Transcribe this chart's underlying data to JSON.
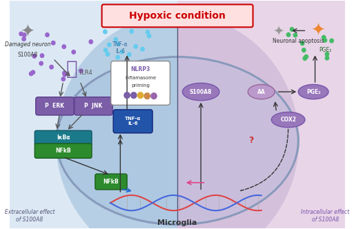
{
  "title": "Hypoxic condition",
  "title_color": "#cc0000",
  "title_box_color": "#ffcccc",
  "bg_color": "#ffffff",
  "left_bg": "#dce9f5",
  "right_bg": "#e8d5e8",
  "cell_left_bg": "#c5d8f0",
  "cell_right_bg": "#d9c5e0",
  "microglia_label": "Microglia",
  "extracellular_label": "Extracellular effect\nof S100A8",
  "intracellular_label": "Intracellular effect\nof S100A8",
  "neuronal_apoptosis_label": "Neuronal apoptosis",
  "damaged_neuron_label": "Damaged neuron",
  "s100a8_label": "S100A8",
  "tlr4_label": "TLR4",
  "erk_label": "P  ERK",
  "jnk_label": "P  JNK",
  "ikba_label": "IκBα",
  "nfkb_box_label": "NFkB",
  "nfkb_label": "NFkB",
  "tnf_il6_label": "TNF-α\nIL-6",
  "tnf_il6_box_label": "TNF-α\nIL-6",
  "nlrp3_label": "NLRP3\ninflamasome\npriming",
  "s100a8_right_label": "S100A8",
  "aa_label": "AA",
  "pge2_label": "PGE₂",
  "cox2_label": "COX2",
  "pge2_top_label": "PGE₂",
  "purple_color": "#7b5ea7",
  "dark_purple": "#5b3d8c",
  "green_color": "#2e8b57",
  "teal_color": "#1a7a6e",
  "blue_color": "#2255aa",
  "light_blue_dots": "#66ccee",
  "purple_dots": "#9966cc",
  "green_dots": "#44bb66"
}
